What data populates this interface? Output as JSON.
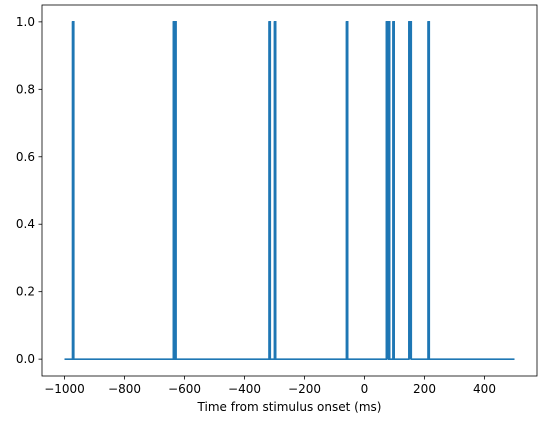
{
  "chart_data": {
    "type": "line",
    "title": "",
    "xlabel": "Time from stimulus onset (ms)",
    "ylabel": "",
    "xlim": [
      -1075,
      575
    ],
    "ylim": [
      -0.05,
      1.05
    ],
    "grid": false,
    "legend": "none",
    "x_ticks": [
      -1000,
      -800,
      -600,
      -400,
      -200,
      0,
      200,
      400
    ],
    "x_tick_labels": [
      "−1000",
      "−800",
      "−600",
      "−400",
      "−200",
      "0",
      "200",
      "400"
    ],
    "y_ticks": [
      0.0,
      0.2,
      0.4,
      0.6,
      0.8,
      1.0
    ],
    "y_tick_labels": [
      "0.0",
      "0.2",
      "0.4",
      "0.6",
      "0.8",
      "1.0"
    ],
    "x_range": [
      -1000,
      500
    ],
    "spike_times": [
      -973,
      -637,
      -632,
      -318,
      -300,
      -60,
      73,
      77,
      80,
      95,
      148,
      152,
      212
    ],
    "spike_value": 1,
    "baseline_value": 0,
    "line_color": "#1f77b4"
  }
}
